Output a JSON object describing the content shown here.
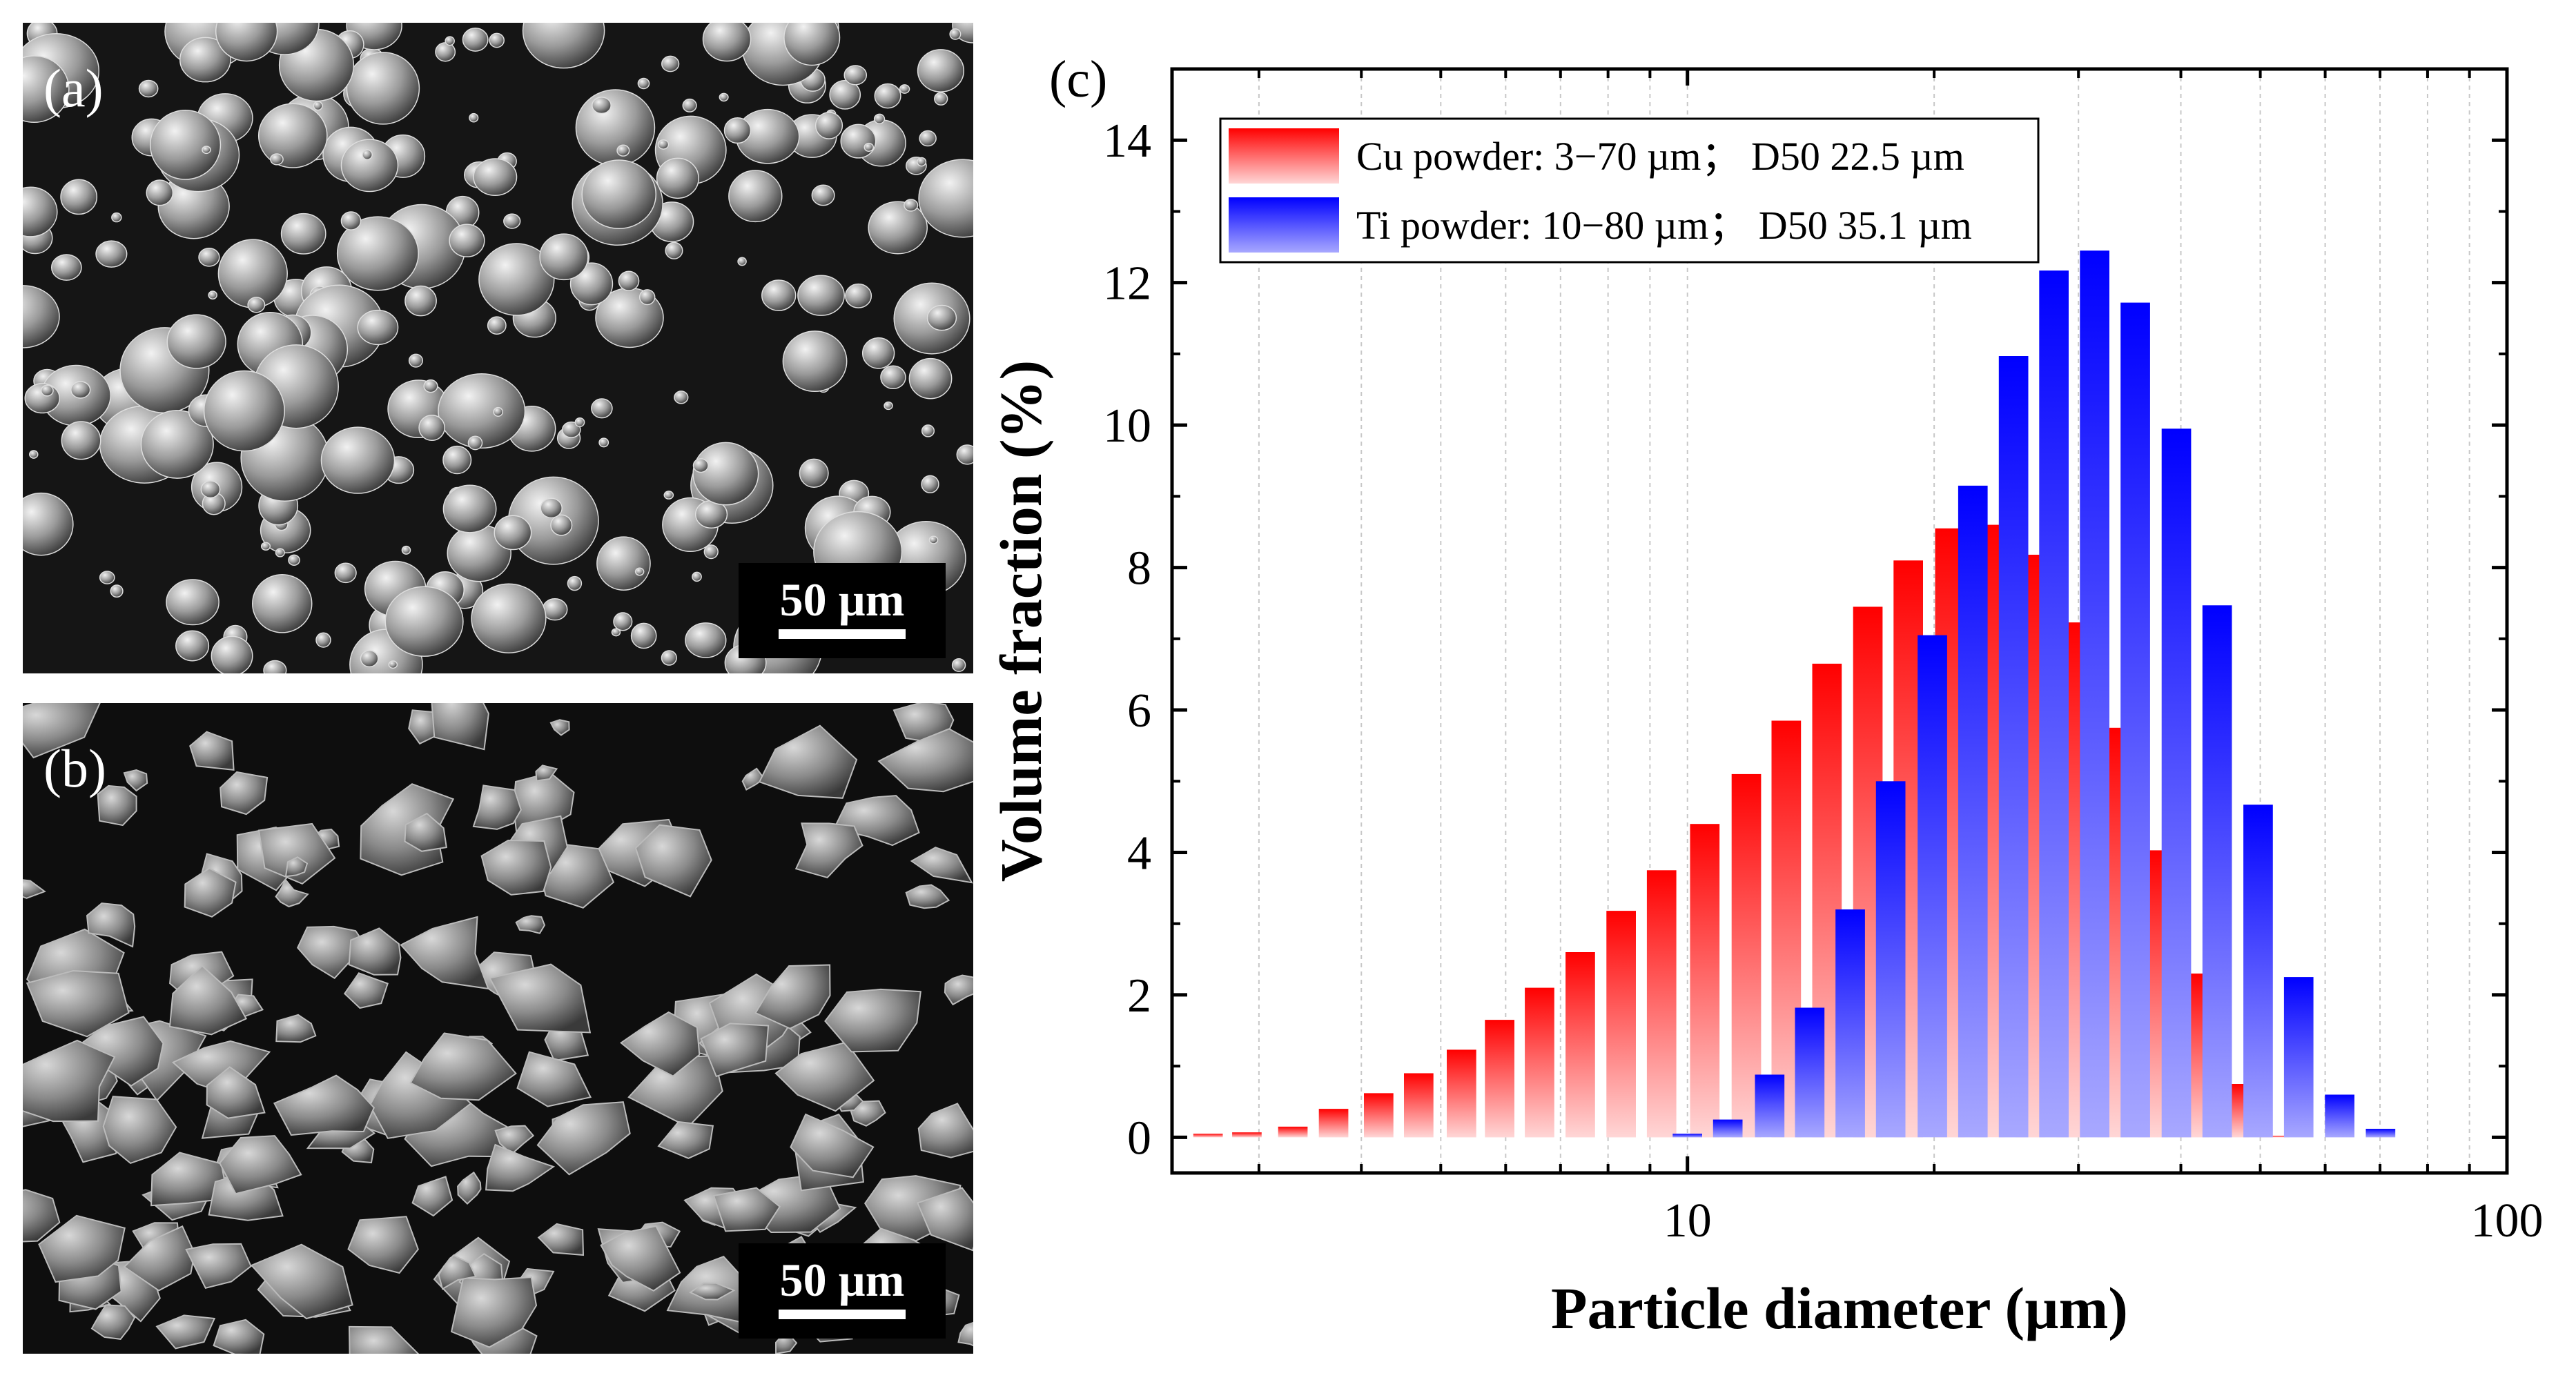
{
  "panels": {
    "a": {
      "label": "(a)",
      "scale_bar": "50 µm",
      "morphology": "spherical"
    },
    "b": {
      "label": "(b)",
      "scale_bar": "50 µm",
      "morphology": "irregular"
    }
  },
  "chart_data": {
    "type": "bar",
    "panel_label": "(c)",
    "xlabel": "Particle diameter (µm)",
    "ylabel": "Volume fraction (%)",
    "xscale": "log",
    "xlim": [
      2.35,
      100
    ],
    "ylim": [
      -0.5,
      15
    ],
    "xticks": [
      10,
      100
    ],
    "xtick_labels": [
      "10",
      "100"
    ],
    "yticks": [
      0,
      2,
      4,
      6,
      8,
      10,
      12,
      14
    ],
    "ytick_labels": [
      "0",
      "2",
      "4",
      "6",
      "8",
      "10",
      "12",
      "14"
    ],
    "grid": "vertical dashed at log minor ticks",
    "legend_position": "top-left",
    "series": [
      {
        "name": "Cu powder: 3−70 µm； D50 22.5 µm",
        "color": "#ff0000",
        "x": [
          2.6,
          2.9,
          3.3,
          3.7,
          4.2,
          4.7,
          5.3,
          5.9,
          6.6,
          7.4,
          8.3,
          9.3,
          10.5,
          11.8,
          13.2,
          14.8,
          16.6,
          18.6,
          20.9,
          23.4,
          26.2,
          29.4,
          33.0,
          37.0,
          41.5,
          46.5,
          52.1,
          58.5
        ],
        "values": [
          0.05,
          0.07,
          0.15,
          0.4,
          0.62,
          0.9,
          1.23,
          1.65,
          2.1,
          2.6,
          3.18,
          3.75,
          4.4,
          5.1,
          5.85,
          6.65,
          7.45,
          8.1,
          8.55,
          8.6,
          8.18,
          7.23,
          5.75,
          4.03,
          2.3,
          0.75,
          0.02,
          0.0
        ]
      },
      {
        "name": "Ti powder: 10−80 µm； D50 35.1 µm",
        "color": "#0000ff",
        "x": [
          10.0,
          11.2,
          12.6,
          14.1,
          15.8,
          17.7,
          19.9,
          22.3,
          25.0,
          28.0,
          31.4,
          35.2,
          39.5,
          44.3,
          49.7,
          55.7,
          62.5,
          70.1,
          78.6,
          88.1
        ],
        "values": [
          0.05,
          0.25,
          0.88,
          1.82,
          3.2,
          5.0,
          7.05,
          9.15,
          10.97,
          12.17,
          12.45,
          11.72,
          9.95,
          7.47,
          4.67,
          2.25,
          0.6,
          0.12,
          0.0,
          0.0
        ]
      }
    ]
  }
}
